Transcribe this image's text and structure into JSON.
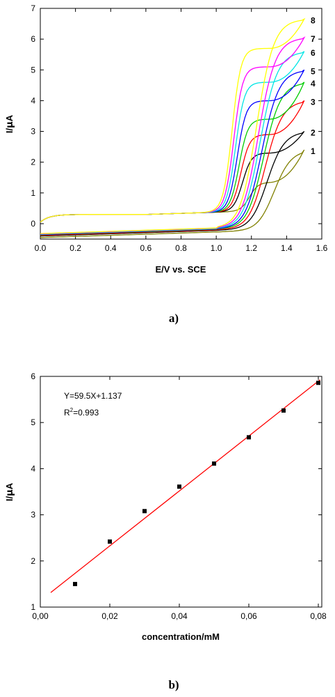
{
  "chart_data": [
    {
      "type": "line",
      "panel_label": "a)",
      "xlabel": "E/V vs. SCE",
      "ylabel_main": "I/",
      "ylabel_mu": "μ",
      "ylabel_unit": "A",
      "xlim": [
        0.0,
        1.6
      ],
      "ylim": [
        -0.5,
        7
      ],
      "x_ticks": [
        "0.0",
        "0.2",
        "0.4",
        "0.6",
        "0.8",
        "1.0",
        "1.2",
        "1.4",
        "1.6"
      ],
      "x_tick_values": [
        0,
        0.2,
        0.4,
        0.6,
        0.8,
        1.0,
        1.2,
        1.4,
        1.6
      ],
      "y_ticks": [
        "0",
        "1",
        "2",
        "3",
        "4",
        "5",
        "6",
        "7"
      ],
      "y_tick_values": [
        0,
        1,
        2,
        3,
        4,
        5,
        6,
        7
      ],
      "grid": false,
      "series": [
        {
          "label": "1",
          "color": "#808000",
          "plateau": 1.35,
          "peak": 2.4,
          "onset": 1.12,
          "low": -0.45
        },
        {
          "label": "2",
          "color": "#000000",
          "plateau": 2.3,
          "peak": 3.0,
          "onset": 1.08,
          "low": -0.4
        },
        {
          "label": "3",
          "color": "#ff0000",
          "plateau": 2.9,
          "peak": 4.0,
          "onset": 1.07,
          "low": -0.38
        },
        {
          "label": "4",
          "color": "#00cc00",
          "plateau": 3.4,
          "peak": 4.6,
          "onset": 1.06,
          "low": -0.36
        },
        {
          "label": "5",
          "color": "#0000ff",
          "plateau": 4.0,
          "peak": 5.0,
          "onset": 1.05,
          "low": -0.35
        },
        {
          "label": "6",
          "color": "#00e5e5",
          "plateau": 4.6,
          "peak": 5.6,
          "onset": 1.04,
          "low": -0.34
        },
        {
          "label": "7",
          "color": "#ff00ff",
          "plateau": 5.1,
          "peak": 6.05,
          "onset": 1.03,
          "low": -0.33
        },
        {
          "label": "8",
          "color": "#ffff00",
          "plateau": 5.7,
          "peak": 6.65,
          "onset": 1.02,
          "low": -0.32
        }
      ]
    },
    {
      "type": "scatter",
      "panel_label": "b)",
      "xlabel": "concentration/mM",
      "ylabel_main": "I/",
      "ylabel_mu": "μ",
      "ylabel_unit": "A",
      "xlim": [
        0.0,
        0.081
      ],
      "ylim": [
        1,
        6
      ],
      "x_ticks": [
        "0,00",
        "0,02",
        "0,04",
        "0,06",
        "0,08"
      ],
      "x_tick_values": [
        0.0,
        0.02,
        0.04,
        0.06,
        0.08
      ],
      "y_ticks": [
        "1",
        "2",
        "3",
        "4",
        "5",
        "6"
      ],
      "y_tick_values": [
        1,
        2,
        3,
        4,
        5,
        6
      ],
      "grid": false,
      "points": {
        "x": [
          0.01,
          0.02,
          0.03,
          0.04,
          0.05,
          0.06,
          0.07,
          0.08
        ],
        "y": [
          1.5,
          2.42,
          3.08,
          3.61,
          4.11,
          4.68,
          5.26,
          5.86
        ]
      },
      "fit": {
        "slope": 59.5,
        "intercept": 1.137,
        "x_range": [
          0.003,
          0.0805
        ],
        "color": "#ff0000"
      },
      "equation_text": "Y=59.5X+1.137",
      "r2_prefix": "R",
      "r2_sup": "2",
      "r2_value": "=0.993"
    }
  ]
}
